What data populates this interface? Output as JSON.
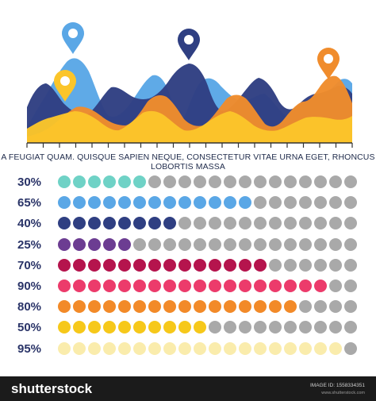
{
  "chart_data": [
    {
      "type": "area",
      "description_text": "A FEUGIAT QUAM. QUISQUE SAPIEN NEQUE, CONSECTETUR VITAE URNA EGET, RHONCUS LOBORTIS MASSA",
      "series": [
        {
          "color": "#5aa7e6"
        },
        {
          "color": "#2f3f82"
        },
        {
          "color": "#f08c2c"
        },
        {
          "color": "#fbc52a"
        }
      ],
      "markers": [
        {
          "color": "#5aa7e6"
        },
        {
          "color": "#fbc52a"
        },
        {
          "color": "#2f3f82"
        },
        {
          "color": "#f08c2c"
        }
      ]
    },
    {
      "type": "dot-matrix",
      "dots_per_row": 20,
      "inactive_color": "#a9a9a9",
      "rows": [
        {
          "label": "30%",
          "value": 30,
          "color": "#6fd2c6"
        },
        {
          "label": "65%",
          "value": 65,
          "color": "#5aa7e6"
        },
        {
          "label": "40%",
          "value": 40,
          "color": "#2f3f82"
        },
        {
          "label": "25%",
          "value": 25,
          "color": "#6c3d92"
        },
        {
          "label": "70%",
          "value": 70,
          "color": "#b5144d"
        },
        {
          "label": "90%",
          "value": 90,
          "color": "#ec3b6b"
        },
        {
          "label": "80%",
          "value": 80,
          "color": "#f28a28"
        },
        {
          "label": "50%",
          "value": 50,
          "color": "#f6c81a"
        },
        {
          "label": "95%",
          "value": 95,
          "color": "#faecac"
        }
      ]
    }
  ],
  "footer": {
    "logo": "shutterstock",
    "image_id": "IMAGE ID: 1558334351",
    "site": "www.shutterstock.com"
  }
}
